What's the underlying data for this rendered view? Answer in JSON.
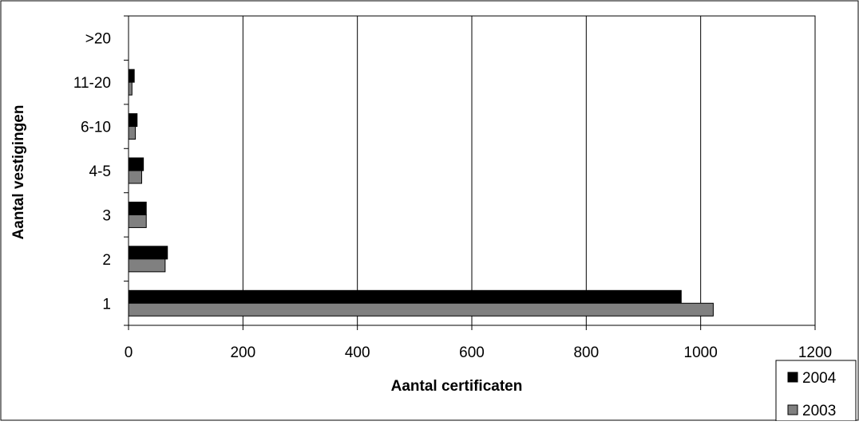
{
  "chart_data": {
    "type": "bar",
    "orientation": "horizontal",
    "categories": [
      "1",
      "2",
      "3",
      "4-5",
      "6-10",
      "11-20",
      ">20"
    ],
    "series": [
      {
        "name": "2004",
        "values": [
          966,
          68,
          31,
          26,
          15,
          10,
          0
        ],
        "color": "#000000"
      },
      {
        "name": "2003",
        "values": [
          1022,
          64,
          31,
          23,
          12,
          6,
          0
        ],
        "color": "#808080"
      }
    ],
    "xlabel": "Aantal certificaten",
    "ylabel": "Aantal vestigingen",
    "xlim": [
      0,
      1200
    ],
    "xticks": [
      0,
      200,
      400,
      600,
      800,
      1000,
      1200
    ],
    "grid": true,
    "legend_position": "bottom-right"
  }
}
